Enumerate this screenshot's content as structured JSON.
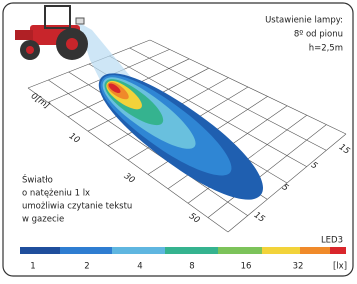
{
  "info": {
    "lines": [
      "Ustawienie lampy:",
      "8º od pionu",
      "h=2,5m"
    ]
  },
  "axis": {
    "distance": [
      "0[m]",
      "10",
      "30",
      "50"
    ],
    "lateral": [
      "15",
      "5",
      "5",
      "15"
    ]
  },
  "note": {
    "lines": [
      "Światło",
      "o natężeniu 1 lx",
      "umożliwia czytanie tekstu",
      "w gazecie"
    ]
  },
  "model": "LED3",
  "legend": {
    "ticks": [
      "1",
      "2",
      "4",
      "8",
      "16",
      "32"
    ],
    "unit": "[lx]"
  }
}
